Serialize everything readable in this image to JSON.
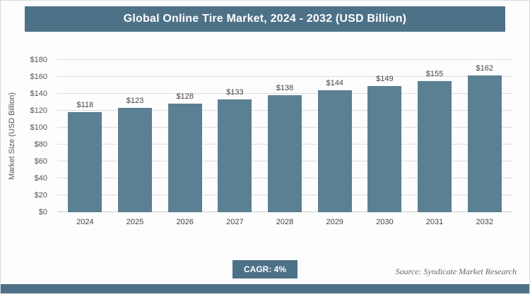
{
  "header": {
    "title": "Global Online Tire Market, 2024 - 2032 (USD Billion)"
  },
  "footer": {
    "cagr_label": "CAGR: 4%",
    "source": "Source: Syndicate Market Research"
  },
  "colors": {
    "accent": "#4d7187",
    "bar": "#5c8093",
    "grid": "#dcdcdc",
    "frame_bg": "#fdfdfd"
  },
  "chart_data": {
    "type": "bar",
    "title": "Global Online Tire Market, 2024 - 2032 (USD Billion)",
    "xlabel": "",
    "ylabel": "Market Size (USD Billion)",
    "categories": [
      "2024",
      "2025",
      "2026",
      "2027",
      "2028",
      "2029",
      "2030",
      "2031",
      "2032"
    ],
    "values": [
      118,
      123,
      128,
      133,
      138,
      144,
      149,
      155,
      162
    ],
    "value_labels": [
      "$118",
      "$123",
      "$128",
      "$133",
      "$138",
      "$144",
      "$149",
      "$155",
      "$162"
    ],
    "ylim": [
      0,
      180
    ],
    "yticks": [
      0,
      20,
      40,
      60,
      80,
      100,
      120,
      140,
      160,
      180
    ],
    "ytick_labels": [
      "$0",
      "$20",
      "$40",
      "$60",
      "$80",
      "$100",
      "$120",
      "$140",
      "$160",
      "$180"
    ],
    "grid": "horizontal",
    "legend": "none"
  }
}
